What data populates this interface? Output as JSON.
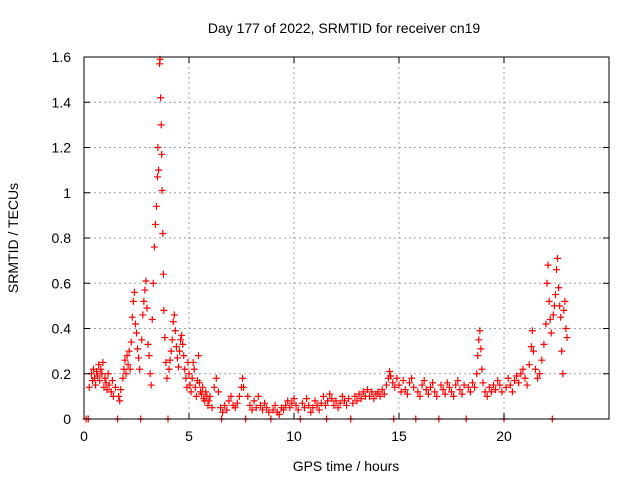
{
  "chart_data": {
    "type": "scatter",
    "title": "Day 177 of 2022, SRMTID for receiver cn19",
    "xlabel": "GPS time / hours",
    "ylabel": "SRMTID / TECUs",
    "xlim": [
      0,
      25
    ],
    "ylim": [
      0,
      1.6
    ],
    "grid": true,
    "marker": "+",
    "series_color": "#ff0000",
    "x_ticks": [
      0,
      5,
      10,
      15,
      20
    ],
    "x_tick_labels": [
      "0",
      "5",
      "10",
      "15",
      "20"
    ],
    "y_ticks": [
      0,
      0.2,
      0.4,
      0.6,
      0.8,
      1.0,
      1.2,
      1.4,
      1.6
    ],
    "y_tick_labels": [
      "0",
      "0.2",
      "0.4",
      "0.6",
      "0.8",
      "1",
      "1.2",
      "1.4",
      "1.6"
    ],
    "series": [
      {
        "name": "SRMTID",
        "points": [
          [
            0.1,
            0.0
          ],
          [
            0.2,
            0.0
          ],
          [
            0.25,
            0.14
          ],
          [
            0.35,
            0.2
          ],
          [
            0.4,
            0.17
          ],
          [
            0.45,
            0.22
          ],
          [
            0.5,
            0.18
          ],
          [
            0.55,
            0.15
          ],
          [
            0.6,
            0.21
          ],
          [
            0.65,
            0.19
          ],
          [
            0.7,
            0.24
          ],
          [
            0.75,
            0.17
          ],
          [
            0.8,
            0.22
          ],
          [
            0.85,
            0.2
          ],
          [
            0.9,
            0.25
          ],
          [
            0.95,
            0.14
          ],
          [
            1.0,
            0.18
          ],
          [
            1.05,
            0.16
          ],
          [
            1.1,
            0.13
          ],
          [
            1.15,
            0.2
          ],
          [
            1.2,
            0.15
          ],
          [
            1.3,
            0.12
          ],
          [
            1.35,
            0.17
          ],
          [
            1.4,
            0.1
          ],
          [
            1.5,
            0.14
          ],
          [
            1.6,
            0.0
          ],
          [
            1.65,
            0.1
          ],
          [
            1.7,
            0.08
          ],
          [
            1.75,
            0.13
          ],
          [
            1.85,
            0.18
          ],
          [
            1.9,
            0.22
          ],
          [
            1.95,
            0.26
          ],
          [
            2.0,
            0.2
          ],
          [
            2.05,
            0.28
          ],
          [
            2.1,
            0.24
          ],
          [
            2.15,
            0.3
          ],
          [
            2.2,
            0.22
          ],
          [
            2.25,
            0.34
          ],
          [
            2.3,
            0.45
          ],
          [
            2.35,
            0.52
          ],
          [
            2.4,
            0.56
          ],
          [
            2.45,
            0.42
          ],
          [
            2.5,
            0.38
          ],
          [
            2.55,
            0.31
          ],
          [
            2.6,
            0.27
          ],
          [
            2.65,
            0.22
          ],
          [
            2.7,
            0.0
          ],
          [
            2.75,
            0.35
          ],
          [
            2.8,
            0.46
          ],
          [
            2.85,
            0.52
          ],
          [
            2.9,
            0.57
          ],
          [
            2.95,
            0.61
          ],
          [
            3.0,
            0.49
          ],
          [
            3.05,
            0.33
          ],
          [
            3.1,
            0.28
          ],
          [
            3.15,
            0.2
          ],
          [
            3.2,
            0.15
          ],
          [
            3.25,
            0.44
          ],
          [
            3.3,
            0.6
          ],
          [
            3.35,
            0.76
          ],
          [
            3.4,
            0.86
          ],
          [
            3.45,
            0.94
          ],
          [
            3.5,
            1.07
          ],
          [
            3.52,
            1.2
          ],
          [
            3.55,
            1.1
          ],
          [
            3.6,
            1.57
          ],
          [
            3.62,
            1.59
          ],
          [
            3.65,
            1.42
          ],
          [
            3.68,
            1.3
          ],
          [
            3.7,
            1.17
          ],
          [
            3.72,
            1.01
          ],
          [
            3.75,
            0.82
          ],
          [
            3.78,
            0.64
          ],
          [
            3.8,
            0.48
          ],
          [
            3.85,
            0.36
          ],
          [
            3.9,
            0.25
          ],
          [
            3.95,
            0.18
          ],
          [
            4.0,
            0.0
          ],
          [
            4.05,
            0.22
          ],
          [
            4.1,
            0.26
          ],
          [
            4.15,
            0.3
          ],
          [
            4.2,
            0.35
          ],
          [
            4.25,
            0.43
          ],
          [
            4.3,
            0.46
          ],
          [
            4.35,
            0.39
          ],
          [
            4.4,
            0.32
          ],
          [
            4.45,
            0.27
          ],
          [
            4.5,
            0.23
          ],
          [
            4.55,
            0.3
          ],
          [
            4.6,
            0.35
          ],
          [
            4.65,
            0.37
          ],
          [
            4.7,
            0.33
          ],
          [
            4.75,
            0.28
          ],
          [
            4.8,
            0.22
          ],
          [
            4.85,
            0.18
          ],
          [
            4.9,
            0.14
          ],
          [
            4.95,
            0.25
          ],
          [
            5.0,
            0.2
          ],
          [
            5.05,
            0.15
          ],
          [
            5.1,
            0.12
          ],
          [
            5.15,
            0.18
          ],
          [
            5.2,
            0.25
          ],
          [
            5.25,
            0.22
          ],
          [
            5.3,
            0.14
          ],
          [
            5.35,
            0.1
          ],
          [
            5.4,
            0.17
          ],
          [
            5.45,
            0.28
          ],
          [
            5.5,
            0.16
          ],
          [
            5.55,
            0.12
          ],
          [
            5.6,
            0.11
          ],
          [
            5.65,
            0.14
          ],
          [
            5.7,
            0.09
          ],
          [
            5.75,
            0.08
          ],
          [
            5.8,
            0.12
          ],
          [
            5.85,
            0.1
          ],
          [
            5.9,
            0.06
          ],
          [
            5.95,
            0.08
          ],
          [
            6.0,
            0.1
          ],
          [
            6.1,
            0.05
          ],
          [
            6.2,
            0.14
          ],
          [
            6.3,
            0.18
          ],
          [
            6.4,
            0.12
          ],
          [
            6.5,
            0.05
          ],
          [
            6.55,
            0.0
          ],
          [
            6.6,
            0.03
          ],
          [
            6.7,
            0.06
          ],
          [
            6.8,
            0.04
          ],
          [
            6.9,
            0.08
          ],
          [
            7.0,
            0.1
          ],
          [
            7.1,
            0.06
          ],
          [
            7.2,
            0.05
          ],
          [
            7.3,
            0.07
          ],
          [
            7.4,
            0.1
          ],
          [
            7.5,
            0.14
          ],
          [
            7.55,
            0.18
          ],
          [
            7.6,
            0.14
          ],
          [
            7.7,
            0.0
          ],
          [
            7.8,
            0.1
          ],
          [
            7.9,
            0.06
          ],
          [
            8.0,
            0.04
          ],
          [
            8.1,
            0.08
          ],
          [
            8.2,
            0.05
          ],
          [
            8.3,
            0.1
          ],
          [
            8.4,
            0.06
          ],
          [
            8.5,
            0.04
          ],
          [
            8.6,
            0.07
          ],
          [
            8.7,
            0.05
          ],
          [
            8.8,
            0.03
          ],
          [
            8.9,
            0.0
          ],
          [
            9.0,
            0.04
          ],
          [
            9.1,
            0.06
          ],
          [
            9.2,
            0.03
          ],
          [
            9.3,
            0.02
          ],
          [
            9.4,
            0.05
          ],
          [
            9.5,
            0.04
          ],
          [
            9.6,
            0.06
          ],
          [
            9.7,
            0.08
          ],
          [
            9.8,
            0.05
          ],
          [
            9.9,
            0.07
          ],
          [
            10.0,
            0.09
          ],
          [
            10.1,
            0.06
          ],
          [
            10.2,
            0.04
          ],
          [
            10.3,
            0.0
          ],
          [
            10.4,
            0.07
          ],
          [
            10.5,
            0.05
          ],
          [
            10.6,
            0.09
          ],
          [
            10.7,
            0.06
          ],
          [
            10.8,
            0.03
          ],
          [
            10.9,
            0.05
          ],
          [
            11.0,
            0.08
          ],
          [
            11.1,
            0.06
          ],
          [
            11.2,
            0.04
          ],
          [
            11.3,
            0.07
          ],
          [
            11.4,
            0.1
          ],
          [
            11.5,
            0.06
          ],
          [
            11.55,
            0.0
          ],
          [
            11.6,
            0.08
          ],
          [
            11.7,
            0.11
          ],
          [
            11.8,
            0.09
          ],
          [
            11.9,
            0.06
          ],
          [
            12.0,
            0.08
          ],
          [
            12.1,
            0.05
          ],
          [
            12.2,
            0.07
          ],
          [
            12.3,
            0.1
          ],
          [
            12.4,
            0.08
          ],
          [
            12.5,
            0.06
          ],
          [
            12.6,
            0.09
          ],
          [
            12.7,
            0.0
          ],
          [
            12.8,
            0.07
          ],
          [
            12.9,
            0.1
          ],
          [
            13.0,
            0.08
          ],
          [
            13.1,
            0.11
          ],
          [
            13.2,
            0.09
          ],
          [
            13.3,
            0.12
          ],
          [
            13.4,
            0.1
          ],
          [
            13.5,
            0.13
          ],
          [
            13.6,
            0.1
          ],
          [
            13.7,
            0.12
          ],
          [
            13.8,
            0.09
          ],
          [
            13.9,
            0.11
          ],
          [
            14.0,
            0.12
          ],
          [
            14.1,
            0.1
          ],
          [
            14.2,
            0.13
          ],
          [
            14.3,
            0.11
          ],
          [
            14.4,
            0.15
          ],
          [
            14.5,
            0.18
          ],
          [
            14.55,
            0.21
          ],
          [
            14.6,
            0.19
          ],
          [
            14.7,
            0.16
          ],
          [
            14.75,
            0.0
          ],
          [
            14.8,
            0.14
          ],
          [
            14.9,
            0.18
          ],
          [
            15.0,
            0.15
          ],
          [
            15.1,
            0.12
          ],
          [
            15.2,
            0.17
          ],
          [
            15.3,
            0.13
          ],
          [
            15.4,
            0.11
          ],
          [
            15.5,
            0.16
          ],
          [
            15.6,
            0.18
          ],
          [
            15.7,
            0.14
          ],
          [
            15.8,
            0.0
          ],
          [
            15.9,
            0.12
          ],
          [
            16.0,
            0.1
          ],
          [
            16.1,
            0.15
          ],
          [
            16.2,
            0.17
          ],
          [
            16.3,
            0.13
          ],
          [
            16.4,
            0.11
          ],
          [
            16.5,
            0.14
          ],
          [
            16.6,
            0.16
          ],
          [
            16.7,
            0.12
          ],
          [
            16.8,
            0.1
          ],
          [
            16.9,
            0.0
          ],
          [
            17.0,
            0.15
          ],
          [
            17.1,
            0.13
          ],
          [
            17.2,
            0.11
          ],
          [
            17.3,
            0.16
          ],
          [
            17.4,
            0.14
          ],
          [
            17.5,
            0.12
          ],
          [
            17.6,
            0.1
          ],
          [
            17.7,
            0.15
          ],
          [
            17.8,
            0.17
          ],
          [
            17.9,
            0.13
          ],
          [
            18.0,
            0.11
          ],
          [
            18.1,
            0.15
          ],
          [
            18.2,
            0.0
          ],
          [
            18.3,
            0.14
          ],
          [
            18.4,
            0.12
          ],
          [
            18.5,
            0.16
          ],
          [
            18.6,
            0.14
          ],
          [
            18.7,
            0.2
          ],
          [
            18.75,
            0.28
          ],
          [
            18.8,
            0.35
          ],
          [
            18.85,
            0.39
          ],
          [
            18.9,
            0.31
          ],
          [
            18.95,
            0.22
          ],
          [
            19.0,
            0.16
          ],
          [
            19.1,
            0.12
          ],
          [
            19.2,
            0.1
          ],
          [
            19.3,
            0.14
          ],
          [
            19.4,
            0.12
          ],
          [
            19.5,
            0.15
          ],
          [
            19.6,
            0.13
          ],
          [
            19.7,
            0.17
          ],
          [
            19.8,
            0.15
          ],
          [
            19.9,
            0.12
          ],
          [
            20.0,
            0.0
          ],
          [
            20.1,
            0.14
          ],
          [
            20.2,
            0.18
          ],
          [
            20.3,
            0.15
          ],
          [
            20.4,
            0.12
          ],
          [
            20.5,
            0.17
          ],
          [
            20.6,
            0.19
          ],
          [
            20.7,
            0.16
          ],
          [
            20.8,
            0.2
          ],
          [
            20.9,
            0.22
          ],
          [
            21.0,
            0.18
          ],
          [
            21.1,
            0.15
          ],
          [
            21.2,
            0.24
          ],
          [
            21.3,
            0.32
          ],
          [
            21.35,
            0.39
          ],
          [
            21.4,
            0.3
          ],
          [
            21.5,
            0.22
          ],
          [
            21.6,
            0.18
          ],
          [
            21.7,
            0.2
          ],
          [
            21.8,
            0.26
          ],
          [
            21.9,
            0.33
          ],
          [
            22.0,
            0.42
          ],
          [
            22.05,
            0.6
          ],
          [
            22.1,
            0.68
          ],
          [
            22.15,
            0.52
          ],
          [
            22.2,
            0.44
          ],
          [
            22.25,
            0.38
          ],
          [
            22.3,
            0.0
          ],
          [
            22.35,
            0.46
          ],
          [
            22.4,
            0.5
          ],
          [
            22.45,
            0.55
          ],
          [
            22.5,
            0.66
          ],
          [
            22.55,
            0.71
          ],
          [
            22.6,
            0.58
          ],
          [
            22.65,
            0.5
          ],
          [
            22.7,
            0.45
          ],
          [
            22.75,
            0.3
          ],
          [
            22.8,
            0.2
          ],
          [
            22.85,
            0.48
          ],
          [
            22.9,
            0.52
          ],
          [
            22.95,
            0.4
          ],
          [
            23.0,
            0.36
          ]
        ]
      }
    ]
  }
}
